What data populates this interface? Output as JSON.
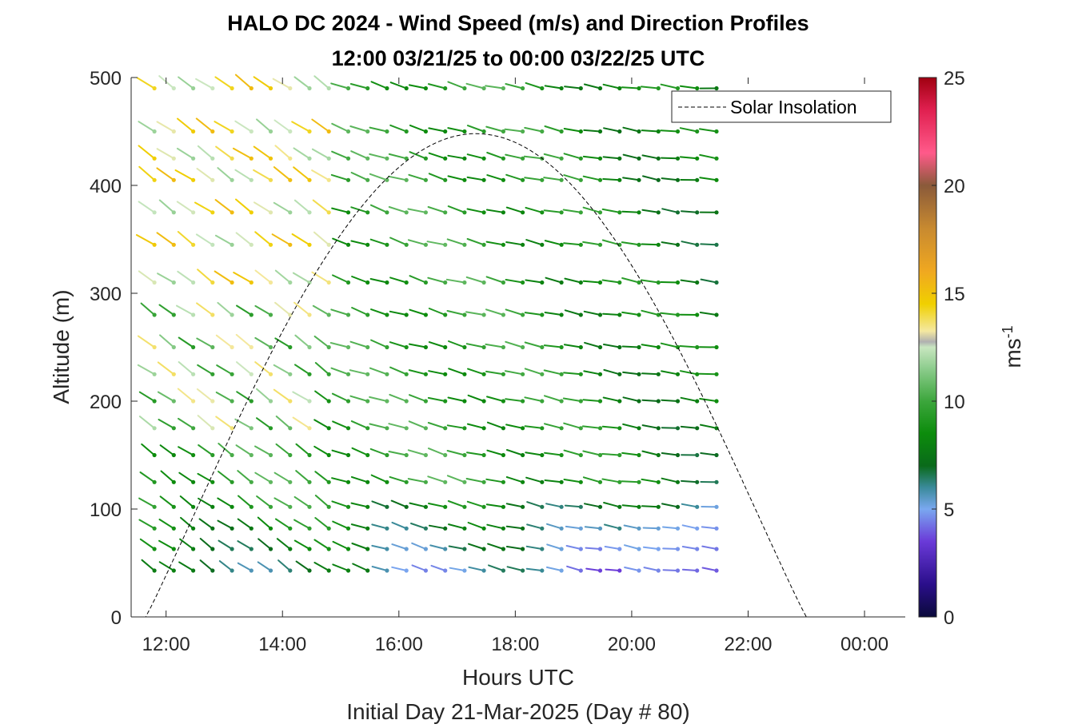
{
  "chart_data": {
    "type": "quiver",
    "title_line1": "HALO DC 2024 - Wind Speed (m/s) and Direction Profiles",
    "title_line2": "12:00 03/21/25 to 00:00 03/22/25  UTC",
    "xlabel": "Hours UTC",
    "xlabel2": "Initial Day 21-Mar-2025 (Day # 80)",
    "ylabel": "Altitude (m)",
    "x_ticks": [
      "12:00",
      "14:00",
      "16:00",
      "18:00",
      "20:00",
      "22:00",
      "00:00"
    ],
    "y_ticks": [
      "0",
      "100",
      "200",
      "300",
      "400",
      "500"
    ],
    "xlim_hours": [
      11.4,
      24.7
    ],
    "ylim": [
      0,
      500
    ],
    "colorbar": {
      "label": "ms",
      "label_sup": "-1",
      "ticks": [
        "0",
        "5",
        "10",
        "15",
        "20",
        "25"
      ],
      "range": [
        0,
        25
      ]
    },
    "legend": {
      "entries": [
        "Solar Insolation"
      ],
      "position": "top-right"
    },
    "wind_field": {
      "time_start_hours": 11.8,
      "time_step_hours": 0.333,
      "time_count": 30,
      "altitudes": [
        43,
        63,
        82,
        102,
        125,
        150,
        175,
        200,
        225,
        250,
        280,
        310,
        345,
        375,
        405,
        425,
        450,
        490
      ],
      "speed_regions": [
        {
          "region": "upper-left (before 15:00, above 300 m)",
          "typical_speed": 14
        },
        {
          "region": "middle (above 100 m)",
          "typical_speed": 10
        },
        {
          "region": "afternoon low levels",
          "typical_speed": 7
        },
        {
          "region": "lowest gates after 20:00",
          "typical_speed": 4
        }
      ],
      "direction": "westerly to north-westerly flow"
    },
    "solar_insolation": {
      "sunrise_hours": 11.65,
      "sunset_hours": 23.0,
      "peak_hours": 17.35,
      "peak_altitude_equiv": 448
    }
  }
}
